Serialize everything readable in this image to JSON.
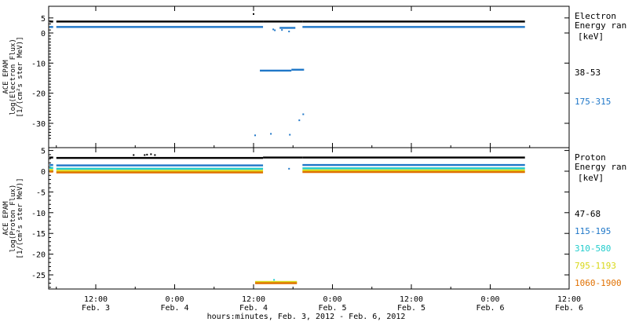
{
  "chart_data": [
    {
      "type": "scatter",
      "ylabel_lines": [
        "ACE EPAM",
        "log(Electron Flux)",
        "[1/(cm²s ster MeV)]"
      ],
      "ylim": [
        -35.5,
        5.5
      ],
      "yticks": [
        0,
        -10,
        -20,
        -30
      ],
      "yticks_extra": [
        5
      ],
      "legend_title_lines": [
        "Electron",
        "Energy ran"
      ],
      "legend_unit": "[keV]",
      "series": [
        {
          "name": "38-53",
          "color": "#000000",
          "segments": [
            {
              "x": [
                0.08,
                0.46
              ],
              "y": 3.8
            },
            {
              "x": [
                0.5,
                3.12
              ],
              "y": 3.8
            },
            {
              "x": [
                3.12,
                3.62
              ],
              "y": 3.8
            },
            {
              "x": [
                3.62,
                6.44
              ],
              "y": 3.8
            }
          ],
          "points": [
            [
              3.0,
              6.3
            ]
          ]
        },
        {
          "name": "175-315",
          "color": "#1f77c8",
          "segments": [
            {
              "x": [
                0.08,
                0.46
              ],
              "y": 2.0
            },
            {
              "x": [
                0.5,
                3.12
              ],
              "y": 2.0
            },
            {
              "x": [
                3.33,
                3.53
              ],
              "y": 1.7
            },
            {
              "x": [
                3.62,
                6.44
              ],
              "y": 2.0
            },
            {
              "x": [
                3.08,
                3.48
              ],
              "y": -12.5
            },
            {
              "x": [
                3.48,
                3.64
              ],
              "y": -12.2
            }
          ],
          "points": [
            [
              3.25,
              1.2
            ],
            [
              3.27,
              0.9
            ],
            [
              3.36,
              1.0
            ],
            [
              3.45,
              0.5
            ],
            [
              3.58,
              -29
            ],
            [
              3.63,
              -27
            ],
            [
              3.02,
              -34
            ],
            [
              3.22,
              -33.5
            ],
            [
              3.46,
              -33.8
            ]
          ]
        }
      ]
    },
    {
      "type": "scatter",
      "ylabel_lines": [
        "ACE EPAM",
        "log(Proton Flux)",
        "[1/(cm²s ster MeV)]"
      ],
      "ylim": [
        -28.5,
        5.5
      ],
      "yticks": [
        0,
        -5,
        -10,
        -15,
        -20,
        -25
      ],
      "yticks_extra": [
        5
      ],
      "legend_title_lines": [
        "Proton",
        "Energy ran"
      ],
      "legend_unit": "[keV]",
      "xticks": [
        {
          "x": 0.5,
          "time": "12:00",
          "day": "Feb. 3"
        },
        {
          "x": 1.0,
          "time": "0:00",
          "day": "Feb. 4"
        },
        {
          "x": 1.5,
          "time": "12:00",
          "day": "Feb. 4"
        },
        {
          "x": 2.0,
          "time": "0:00",
          "day": "Feb. 5"
        },
        {
          "x": 2.5,
          "time": "12:00",
          "day": "Feb. 5"
        },
        {
          "x": 3.0,
          "time": "0:00",
          "day": "Feb. 6"
        },
        {
          "x": 3.5,
          "time": "12:00",
          "day": "Feb. 6"
        }
      ],
      "xlabel": "hours:minutes, Feb.  3, 2012 - Feb.  6, 2012",
      "series": [
        {
          "name": "47-68",
          "color": "#000000",
          "segments": [
            {
              "x": [
                0.08,
                0.46
              ],
              "y": 3.3
            },
            {
              "x": [
                0.5,
                3.12
              ],
              "y": 3.2
            },
            {
              "x": [
                3.12,
                3.62
              ],
              "y": 3.3
            },
            {
              "x": [
                3.62,
                6.44
              ],
              "y": 3.3
            }
          ],
          "points": [
            [
              1.48,
              3.9
            ],
            [
              1.62,
              3.9
            ],
            [
              1.65,
              4.0
            ],
            [
              1.7,
              4.1
            ],
            [
              1.75,
              3.9
            ]
          ]
        },
        {
          "name": "115-195",
          "color": "#1f77c8",
          "segments": [
            {
              "x": [
                0.08,
                0.46
              ],
              "y": 1.5
            },
            {
              "x": [
                0.5,
                3.12
              ],
              "y": 1.4
            },
            {
              "x": [
                3.62,
                6.44
              ],
              "y": 1.5
            }
          ],
          "points": [
            [
              3.45,
              0.6
            ]
          ]
        },
        {
          "name": "310-580",
          "color": "#22cccc",
          "segments": [
            {
              "x": [
                0.08,
                0.46
              ],
              "y": 0.8
            },
            {
              "x": [
                0.5,
                3.12
              ],
              "y": 0.6
            },
            {
              "x": [
                3.62,
                6.44
              ],
              "y": 0.7
            }
          ],
          "points": [
            [
              3.26,
              -26.2
            ]
          ]
        },
        {
          "name": "795-1193",
          "color": "#d8d818",
          "segments": [
            {
              "x": [
                0.08,
                0.46
              ],
              "y": 0.3
            },
            {
              "x": [
                0.5,
                3.12
              ],
              "y": 0.1
            },
            {
              "x": [
                3.62,
                6.44
              ],
              "y": 0.2
            },
            {
              "x": [
                3.02,
                3.55
              ],
              "y": -26.7
            }
          ],
          "points": []
        },
        {
          "name": "1060-1900",
          "color": "#e07000",
          "segments": [
            {
              "x": [
                0.08,
                0.46
              ],
              "y": -0.1
            },
            {
              "x": [
                0.5,
                3.12
              ],
              "y": -0.3
            },
            {
              "x": [
                3.62,
                6.44
              ],
              "y": -0.2
            },
            {
              "x": [
                3.02,
                3.55
              ],
              "y": -27.0
            }
          ],
          "points": []
        }
      ]
    }
  ]
}
